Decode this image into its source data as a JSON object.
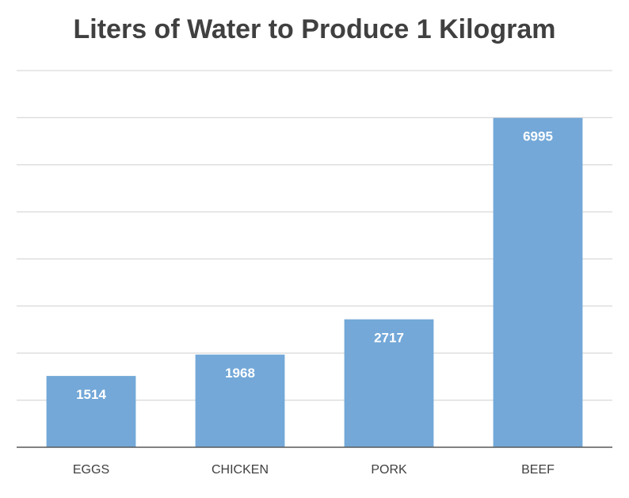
{
  "chart_data": {
    "type": "bar",
    "title": "Liters of Water to Produce 1 Kilogram",
    "xlabel": "",
    "ylabel": "",
    "categories": [
      "EGGS",
      "CHICKEN",
      "PORK",
      "BEEF"
    ],
    "values": [
      1514,
      1968,
      2717,
      6995
    ],
    "ylim": [
      0,
      8000
    ],
    "grid": true,
    "legend": "none",
    "bar_color": "#73a8d8",
    "label_color": "#ffffff"
  }
}
